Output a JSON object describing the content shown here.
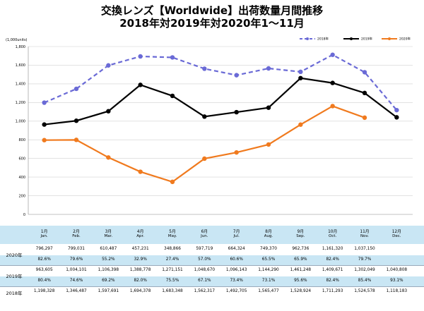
{
  "header": {
    "title1": "交換レンズ【Worldwide】出荷数量月間推移",
    "title2": "2018年対2019年対2020年1～11月"
  },
  "chart_data": {
    "type": "line",
    "unit_label": "(1,000units)",
    "ylim": [
      0,
      1800
    ],
    "yticks": [
      "0",
      "200",
      "400",
      "600",
      "800",
      "1,000",
      "1,200",
      "1,400",
      "1,600",
      "1,800"
    ],
    "grid": true,
    "legend_position": "top-right",
    "categories_jp": [
      "1月",
      "2月",
      "3月",
      "4月",
      "5月",
      "6月",
      "7月",
      "8月",
      "9月",
      "10月",
      "11月",
      "12月"
    ],
    "categories_en": [
      "Jan.",
      "Feb.",
      "Mar.",
      "Apr.",
      "May.",
      "Jun.",
      "Jul.",
      "Aug.",
      "Sep.",
      "Oct.",
      "Nov.",
      "Dec."
    ],
    "series": [
      {
        "name": "2018年",
        "color": "#6a6ad6",
        "style": "dashed",
        "values": [
          1198.328,
          1346.487,
          1597.691,
          1694.378,
          1683.348,
          1562.317,
          1492.705,
          1565.477,
          1528.924,
          1711.293,
          1524.578,
          1118.183
        ]
      },
      {
        "name": "2019年",
        "color": "#000000",
        "style": "solid",
        "values": [
          963.605,
          1004.101,
          1106.398,
          1388.778,
          1271.151,
          1048.67,
          1096.143,
          1144.29,
          1461.248,
          1409.671,
          1302.049,
          1040.808
        ]
      },
      {
        "name": "2020年",
        "color": "#f07a1e",
        "style": "solid",
        "values": [
          796.297,
          799.031,
          610.487,
          457.231,
          348.866,
          597.719,
          664.324,
          749.37,
          962.736,
          1161.32,
          1037.15,
          null
        ]
      }
    ]
  },
  "table": {
    "rows": [
      {
        "label": "2020年",
        "values": [
          "796,297",
          "799,031",
          "610,487",
          "457,231",
          "348,866",
          "597,719",
          "664,324",
          "749,370",
          "962,736",
          "1,161,320",
          "1,037,150",
          ""
        ],
        "pct": [
          "82.6%",
          "79.6%",
          "55.2%",
          "32.9%",
          "27.4%",
          "57.0%",
          "60.6%",
          "65.5%",
          "65.9%",
          "82.4%",
          "79.7%",
          ""
        ]
      },
      {
        "label": "2019年",
        "values": [
          "963,605",
          "1,004,101",
          "1,106,398",
          "1,388,778",
          "1,271,151",
          "1,048,670",
          "1,096,143",
          "1,144,290",
          "1,461,248",
          "1,409,671",
          "1,302,049",
          "1,040,808"
        ],
        "pct": [
          "80.4%",
          "74.6%",
          "69.2%",
          "82.0%",
          "75.5%",
          "67.1%",
          "73.4%",
          "73.1%",
          "95.6%",
          "82.4%",
          "85.4%",
          "93.1%"
        ]
      },
      {
        "label": "2018年",
        "values": [
          "1,198,328",
          "1,346,487",
          "1,597,691",
          "1,694,378",
          "1,683,348",
          "1,562,317",
          "1,492,705",
          "1,565,477",
          "1,528,924",
          "1,711,293",
          "1,524,578",
          "1,118,183"
        ],
        "pct": []
      }
    ]
  }
}
